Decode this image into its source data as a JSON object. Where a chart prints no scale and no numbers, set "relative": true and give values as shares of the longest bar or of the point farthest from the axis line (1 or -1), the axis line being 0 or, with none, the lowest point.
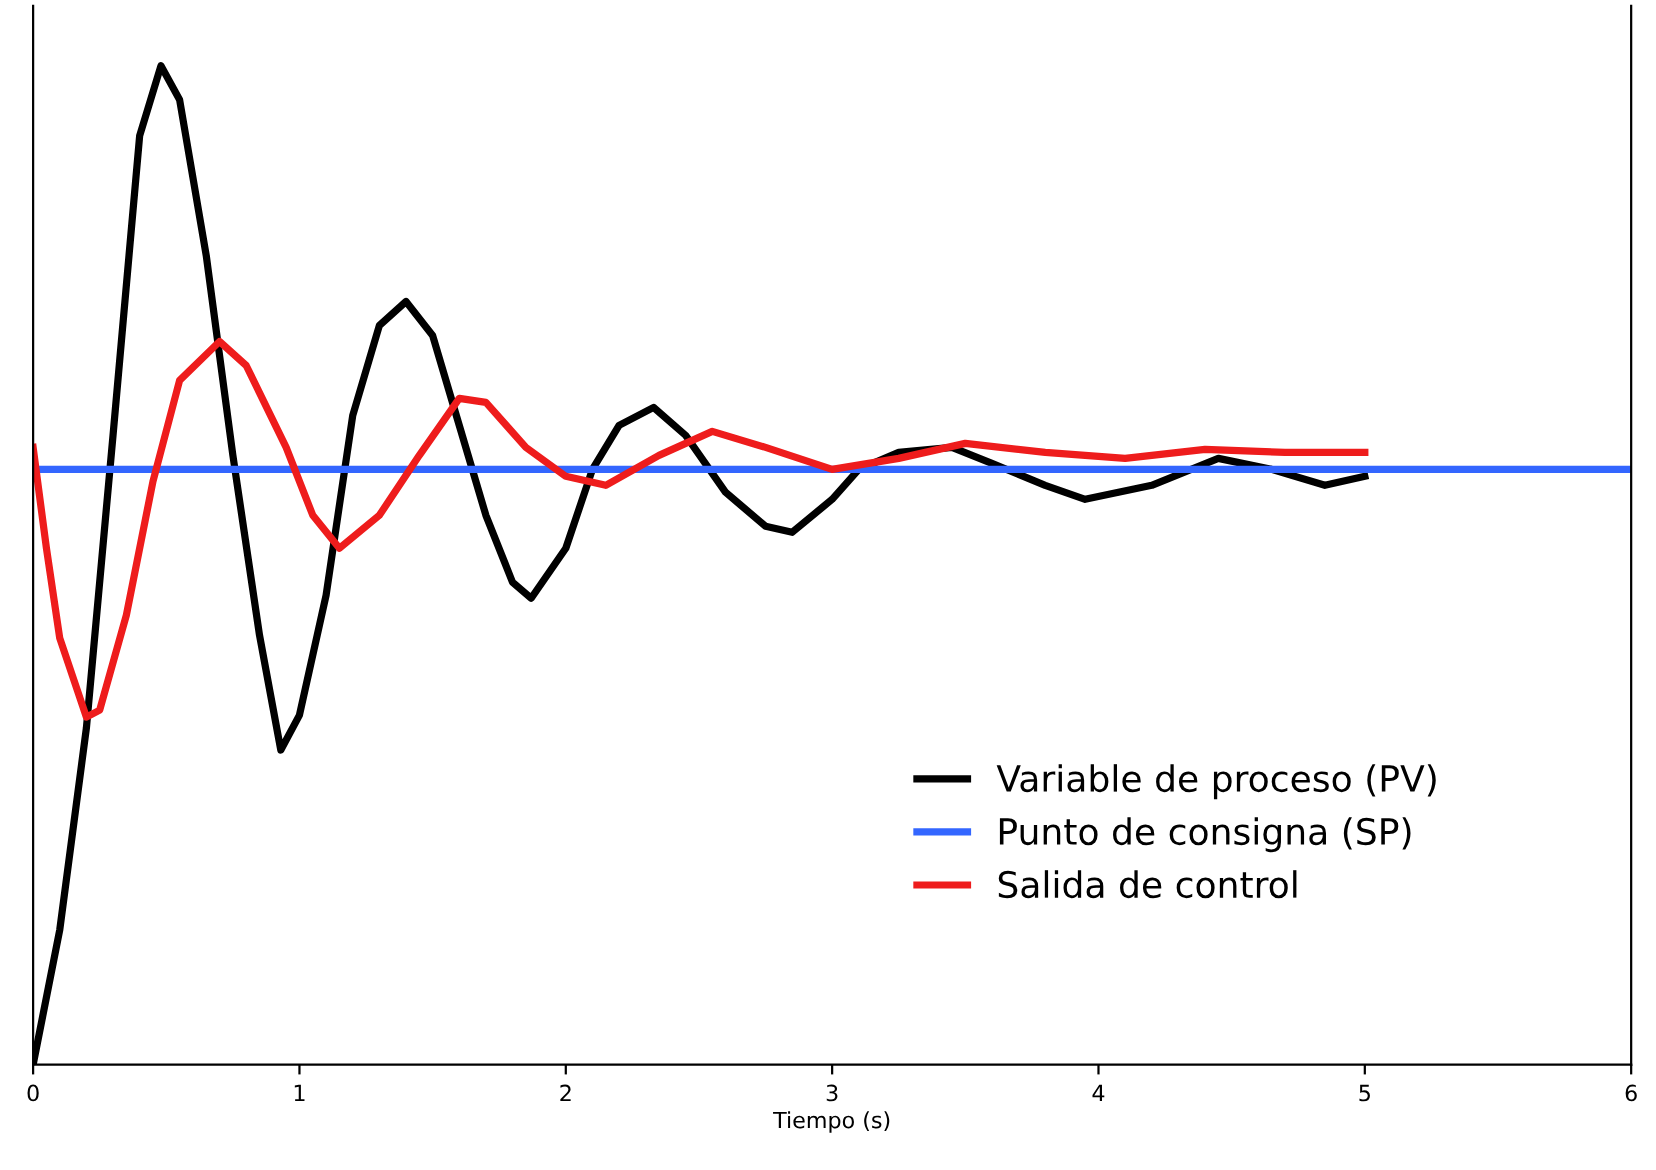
{
  "chart_data": {
    "type": "line",
    "relative": true,
    "xlabel": "Tiempo (s)",
    "xlim": [
      0,
      6
    ],
    "xticks": [
      0,
      1,
      2,
      3,
      4,
      5,
      6
    ],
    "legend": "lower right",
    "grid": false,
    "marker": "none",
    "line_style": "solid",
    "series": [
      {
        "name": "Variable de proceso (PV)",
        "color": "#000000",
        "x": [
          0,
          0.1,
          0.2,
          0.3,
          0.4,
          0.48,
          0.55,
          0.65,
          0.75,
          0.85,
          0.93,
          1.0,
          1.1,
          1.2,
          1.3,
          1.4,
          1.5,
          1.6,
          1.7,
          1.8,
          1.87,
          2.0,
          2.1,
          2.2,
          2.33,
          2.45,
          2.6,
          2.75,
          2.85,
          3.0,
          3.1,
          3.25,
          3.45,
          3.6,
          3.8,
          3.95,
          4.2,
          4.45,
          4.65,
          4.85,
          5.0
        ],
        "values": [
          0,
          0.135,
          0.337,
          0.63,
          0.93,
          1.0,
          0.966,
          0.81,
          0.61,
          0.43,
          0.315,
          0.35,
          0.47,
          0.65,
          0.74,
          0.764,
          0.73,
          0.64,
          0.55,
          0.483,
          0.467,
          0.517,
          0.596,
          0.64,
          0.658,
          0.63,
          0.573,
          0.539,
          0.533,
          0.566,
          0.596,
          0.613,
          0.618,
          0.602,
          0.58,
          0.566,
          0.58,
          0.607,
          0.596,
          0.58,
          0.589
        ]
      },
      {
        "name": "Punto de consigna (SP)",
        "color": "#3366ff",
        "x": [
          0,
          6
        ],
        "values": [
          0.596,
          0.596
        ]
      },
      {
        "name": "Salida de control",
        "color": "#ee1c1c",
        "x": [
          0,
          0.05,
          0.1,
          0.2,
          0.25,
          0.35,
          0.45,
          0.55,
          0.7,
          0.8,
          0.95,
          1.05,
          1.15,
          1.3,
          1.45,
          1.6,
          1.7,
          1.85,
          2.0,
          2.15,
          2.35,
          2.55,
          2.75,
          3.0,
          3.25,
          3.5,
          3.8,
          4.1,
          4.4,
          4.7,
          5.0
        ],
        "values": [
          0.618,
          0.517,
          0.427,
          0.348,
          0.355,
          0.45,
          0.584,
          0.685,
          0.724,
          0.7,
          0.618,
          0.55,
          0.517,
          0.55,
          0.61,
          0.667,
          0.663,
          0.618,
          0.589,
          0.58,
          0.61,
          0.634,
          0.618,
          0.596,
          0.607,
          0.622,
          0.613,
          0.607,
          0.616,
          0.613,
          0.613
        ]
      }
    ]
  }
}
